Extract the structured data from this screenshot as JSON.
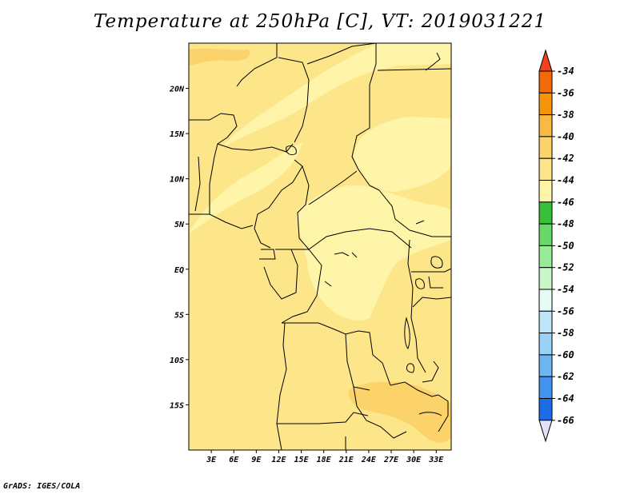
{
  "title": "Temperature at 250hPa [C], VT: 2019031221",
  "credit": "GrADS: IGES/COLA",
  "map": {
    "projection": "latlon",
    "lon_range": [
      0,
      35
    ],
    "lat_range": [
      -20,
      25
    ],
    "lat_ticks": [
      {
        "value": 20,
        "label": "20N"
      },
      {
        "value": 15,
        "label": "15N"
      },
      {
        "value": 10,
        "label": "10N"
      },
      {
        "value": 5,
        "label": "5N"
      },
      {
        "value": 0,
        "label": "EQ"
      },
      {
        "value": -5,
        "label": "5S"
      },
      {
        "value": -10,
        "label": "10S"
      },
      {
        "value": -15,
        "label": "15S"
      }
    ],
    "lon_ticks": [
      {
        "value": 3,
        "label": "3E"
      },
      {
        "value": 6,
        "label": "6E"
      },
      {
        "value": 9,
        "label": "9E"
      },
      {
        "value": 12,
        "label": "12E"
      },
      {
        "value": 15,
        "label": "15E"
      },
      {
        "value": 18,
        "label": "18E"
      },
      {
        "value": 21,
        "label": "21E"
      },
      {
        "value": 24,
        "label": "24E"
      },
      {
        "value": 27,
        "label": "27E"
      },
      {
        "value": 30,
        "label": "30E"
      },
      {
        "value": 33,
        "label": "33E"
      }
    ],
    "fill_colors": {
      "band_-44_-42": "#fff5a8",
      "band_-42_-40": "#fde68a",
      "band_-40_-38": "#fcd36a",
      "band_-38_-36": "#fab844",
      "border": "#000000"
    }
  },
  "colorbar": {
    "labels": [
      "-34",
      "-36",
      "-38",
      "-40",
      "-42",
      "-44",
      "-46",
      "-48",
      "-50",
      "-52",
      "-54",
      "-56",
      "-58",
      "-60",
      "-62",
      "-64",
      "-66"
    ],
    "top_arrow_color": "#f0401c",
    "bottom_arrow_color": "#e4e0f8",
    "boxes": [
      "#f56a08",
      "#f7950a",
      "#fab844",
      "#fcd36a",
      "#fde68a",
      "#fff5a8",
      "#38c038",
      "#68d868",
      "#98ec98",
      "#c8f6c8",
      "#e6faf6",
      "#bee4f8",
      "#9ad2f6",
      "#6cb6f2",
      "#4294ee",
      "#1c6ce8",
      "#1846c0",
      "#0c1e80"
    ]
  }
}
